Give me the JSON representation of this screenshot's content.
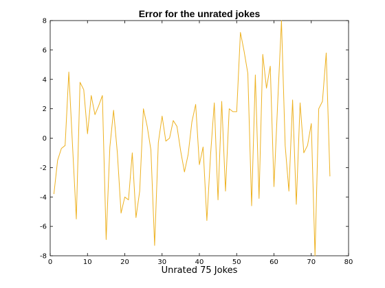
{
  "chart_data": {
    "type": "line",
    "title": "Error for the unrated jokes",
    "xlabel": "Unrated 75 Jokes",
    "ylabel": "",
    "xlim": [
      0,
      80
    ],
    "ylim": [
      -8,
      8
    ],
    "xticks": [
      0,
      10,
      20,
      30,
      40,
      50,
      60,
      70,
      80
    ],
    "yticks": [
      -8,
      -6,
      -4,
      -2,
      0,
      2,
      4,
      6,
      8
    ],
    "grid": false,
    "legend": "none",
    "line_color": "#EDB120",
    "x": [
      1,
      2,
      3,
      4,
      5,
      6,
      7,
      8,
      9,
      10,
      11,
      12,
      13,
      14,
      15,
      16,
      17,
      18,
      19,
      20,
      21,
      22,
      23,
      24,
      25,
      26,
      27,
      28,
      29,
      30,
      31,
      32,
      33,
      34,
      35,
      36,
      37,
      38,
      39,
      40,
      41,
      42,
      43,
      44,
      45,
      46,
      47,
      48,
      49,
      50,
      51,
      52,
      53,
      54,
      55,
      56,
      57,
      58,
      59,
      60,
      61,
      62,
      63,
      64,
      65,
      66,
      67,
      68,
      69,
      70,
      71,
      72,
      73,
      74,
      75
    ],
    "y": [
      -3.8,
      -1.5,
      -0.7,
      -0.5,
      4.5,
      -0.5,
      -5.5,
      3.8,
      3.3,
      0.3,
      2.9,
      1.6,
      2.2,
      2.9,
      -6.9,
      -0.6,
      1.9,
      -1.0,
      -5.1,
      -4.0,
      -4.2,
      -1.0,
      -5.4,
      -3.6,
      2.0,
      0.8,
      -0.8,
      -7.3,
      -0.3,
      1.5,
      -0.2,
      0.0,
      1.2,
      0.8,
      -0.9,
      -2.3,
      -1.1,
      1.1,
      2.3,
      -1.8,
      -0.6,
      -5.6,
      -1.1,
      2.4,
      -4.2,
      2.5,
      -3.6,
      2.0,
      1.8,
      1.8,
      7.2,
      5.9,
      4.4,
      -4.6,
      4.3,
      -4.1,
      5.7,
      3.4,
      4.9,
      -3.3,
      2.4,
      8.0,
      -0.5,
      -3.6,
      2.6,
      -4.5,
      2.4,
      -1.0,
      -0.5,
      1.0,
      -8.0,
      2.0,
      2.5,
      5.8,
      -2.6
    ]
  }
}
